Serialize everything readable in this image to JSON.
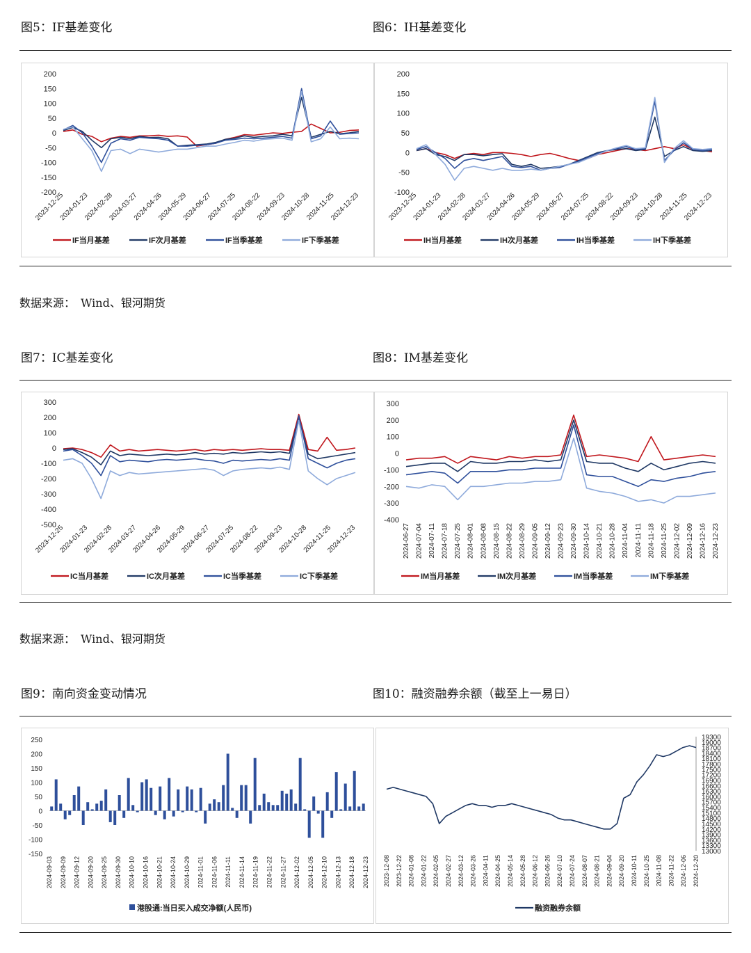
{
  "titles": {
    "fig5": "图5：IF基差变化",
    "fig6": "图6：IH基差变化",
    "fig7": "图7：IC基差变化",
    "fig8": "图8：IM基差变化",
    "fig9": "图9：南向资金变动情况",
    "fig10": "图10：融资融券余额（截至上一易日）"
  },
  "sources": {
    "s1": "数据来源：　Wind、银河期货",
    "s2": "数据来源：　Wind、银河期货"
  },
  "colors": {
    "red": "#c0161c",
    "navy": "#1f3864",
    "blue": "#2e4f9b",
    "light": "#8eaadb",
    "bar": "#2e4f9b",
    "line": "#1f3864"
  },
  "chart_data": [
    {
      "id": "fig5",
      "type": "line",
      "title": "IF基差变化",
      "ylim": [
        -200,
        200
      ],
      "yticks": [
        200,
        150,
        100,
        50,
        0,
        -50,
        -100,
        -150,
        -200
      ],
      "xticks": [
        "2023-12-25",
        "2024-01-23",
        "2024-02-28",
        "2024-03-27",
        "2024-04-26",
        "2024-05-29",
        "2024-06-27",
        "2024-07-25",
        "2024-08-22",
        "2024-09-23",
        "2024-10-28",
        "2024-11-25",
        "2024-12-23"
      ],
      "legend_position": "bottom",
      "series": [
        {
          "name": "IF当月基差",
          "color": "red",
          "values": [
            5,
            10,
            -5,
            -12,
            -30,
            -18,
            -12,
            -15,
            -10,
            -10,
            -8,
            -12,
            -10,
            -14,
            -45,
            -40,
            -35,
            -22,
            -15,
            -6,
            -8,
            -4,
            0,
            -2,
            2,
            5,
            30,
            15,
            0,
            2,
            8,
            10
          ]
        },
        {
          "name": "IF次月基差",
          "color": "navy",
          "values": [
            8,
            18,
            5,
            -25,
            -50,
            -20,
            -15,
            -20,
            -12,
            -16,
            -15,
            -20,
            -45,
            -42,
            -40,
            -38,
            -32,
            -22,
            -18,
            -10,
            -15,
            -12,
            -10,
            -5,
            -10,
            120,
            -15,
            -5,
            5,
            -3,
            0,
            5
          ]
        },
        {
          "name": "IF当季基差",
          "color": "blue",
          "values": [
            10,
            25,
            0,
            -45,
            -100,
            -35,
            -20,
            -25,
            -15,
            -18,
            -20,
            -25,
            -45,
            -45,
            -42,
            -40,
            -35,
            -25,
            -22,
            -18,
            -20,
            -18,
            -15,
            -12,
            -18,
            150,
            -20,
            -10,
            40,
            -5,
            -2,
            0
          ]
        },
        {
          "name": "IF下季基差",
          "color": "light",
          "values": [
            12,
            20,
            -20,
            -60,
            -130,
            -60,
            -55,
            -70,
            -55,
            -60,
            -65,
            -60,
            -55,
            -55,
            -50,
            -45,
            -45,
            -38,
            -32,
            -25,
            -28,
            -22,
            -20,
            -18,
            -25,
            140,
            -30,
            -20,
            20,
            -20,
            -18,
            -20
          ]
        }
      ]
    },
    {
      "id": "fig6",
      "type": "line",
      "title": "IH基差变化",
      "ylim": [
        -100,
        200
      ],
      "yticks": [
        200,
        150,
        100,
        50,
        0,
        -50,
        -100
      ],
      "xticks": [
        "2023-12-25",
        "2024-01-23",
        "2024-02-28",
        "2024-03-27",
        "2024-04-26",
        "2024-05-29",
        "2024-06-27",
        "2024-07-25",
        "2024-08-22",
        "2024-09-23",
        "2024-10-28",
        "2024-11-25",
        "2024-12-23"
      ],
      "legend_position": "bottom",
      "series": [
        {
          "name": "IH当月基差",
          "color": "red",
          "values": [
            5,
            10,
            0,
            -5,
            -15,
            -5,
            -2,
            -5,
            0,
            0,
            -2,
            -5,
            -10,
            -5,
            -2,
            -8,
            -15,
            -20,
            -15,
            -5,
            0,
            5,
            10,
            8,
            5,
            10,
            15,
            10,
            20,
            8,
            5,
            2
          ]
        },
        {
          "name": "IH次月基差",
          "color": "navy",
          "values": [
            5,
            10,
            -5,
            -10,
            -20,
            -5,
            -5,
            -8,
            -5,
            -3,
            -30,
            -35,
            -30,
            -40,
            -38,
            -35,
            -30,
            -20,
            -10,
            0,
            5,
            8,
            10,
            5,
            8,
            90,
            -10,
            5,
            15,
            5,
            3,
            5
          ]
        },
        {
          "name": "IH当季基差",
          "color": "blue",
          "values": [
            8,
            15,
            0,
            -15,
            -40,
            -20,
            -15,
            -20,
            -15,
            -10,
            -35,
            -38,
            -35,
            -45,
            -40,
            -38,
            -30,
            -22,
            -12,
            -2,
            5,
            10,
            15,
            8,
            10,
            130,
            -20,
            5,
            25,
            8,
            5,
            8
          ]
        },
        {
          "name": "IH下季基差",
          "color": "light",
          "values": [
            10,
            20,
            -5,
            -30,
            -70,
            -40,
            -35,
            -40,
            -45,
            -40,
            -45,
            -45,
            -42,
            -45,
            -40,
            -35,
            -30,
            -25,
            -15,
            -5,
            5,
            12,
            18,
            10,
            12,
            140,
            -25,
            10,
            30,
            10,
            8,
            10
          ]
        }
      ]
    },
    {
      "id": "fig7",
      "type": "line",
      "title": "IC基差变化",
      "ylim": [
        -500,
        300
      ],
      "yticks": [
        300,
        200,
        100,
        0,
        -100,
        -200,
        -300,
        -400,
        -500
      ],
      "xticks": [
        "2023-12-25",
        "2024-01-23",
        "2024-02-28",
        "2024-03-27",
        "2024-04-26",
        "2024-05-29",
        "2024-06-27",
        "2024-07-25",
        "2024-08-22",
        "2024-09-23",
        "2024-10-28",
        "2024-11-25",
        "2024-12-23"
      ],
      "legend_position": "bottom",
      "series": [
        {
          "name": "IC当月基差",
          "color": "red",
          "values": [
            -5,
            0,
            -10,
            -30,
            -60,
            20,
            -20,
            -10,
            -20,
            -15,
            -10,
            -15,
            -20,
            -15,
            -10,
            -20,
            -10,
            -15,
            -10,
            -15,
            -10,
            -5,
            -10,
            -10,
            -15,
            220,
            -10,
            -20,
            70,
            -15,
            -10,
            0
          ]
        },
        {
          "name": "IC次月基差",
          "color": "navy",
          "values": [
            -10,
            -5,
            -30,
            -60,
            -110,
            -20,
            -50,
            -40,
            -45,
            -50,
            -45,
            -40,
            -45,
            -40,
            -30,
            -40,
            -35,
            -40,
            -30,
            -35,
            -30,
            -25,
            -30,
            -25,
            -35,
            200,
            -40,
            -70,
            -60,
            -50,
            -40,
            -30
          ]
        },
        {
          "name": "IC当季基差",
          "color": "blue",
          "values": [
            -20,
            -10,
            -50,
            -100,
            -180,
            -50,
            -90,
            -80,
            -85,
            -90,
            -80,
            -75,
            -80,
            -75,
            -70,
            -80,
            -85,
            -100,
            -80,
            -85,
            -80,
            -75,
            -80,
            -70,
            -80,
            210,
            -70,
            -100,
            -130,
            -100,
            -80,
            -70
          ]
        },
        {
          "name": "IC下季基差",
          "color": "light",
          "values": [
            -80,
            -70,
            -100,
            -200,
            -330,
            -150,
            -180,
            -160,
            -170,
            -165,
            -160,
            -155,
            -150,
            -145,
            -140,
            -135,
            -145,
            -180,
            -150,
            -140,
            -135,
            -130,
            -135,
            -125,
            -140,
            180,
            -150,
            -200,
            -240,
            -200,
            -180,
            -160
          ]
        }
      ]
    },
    {
      "id": "fig8",
      "type": "line",
      "title": "IM基差变化",
      "ylim": [
        -400,
        300
      ],
      "yticks": [
        300,
        200,
        100,
        0,
        -100,
        -200,
        -300,
        -400
      ],
      "xticks": [
        "2024-06-27",
        "2024-07-04",
        "2024-07-11",
        "2024-07-18",
        "2024-07-25",
        "2024-08-01",
        "2024-08-08",
        "2024-08-15",
        "2024-08-22",
        "2024-08-29",
        "2024-09-05",
        "2024-09-12",
        "2024-09-23",
        "2024-09-30",
        "2024-10-14",
        "2024-10-21",
        "2024-10-28",
        "2024-11-04",
        "2024-11-11",
        "2024-11-18",
        "2024-11-25",
        "2024-12-02",
        "2024-12-09",
        "2024-12-16",
        "2024-12-23"
      ],
      "legend_position": "bottom",
      "series": [
        {
          "name": "IM当月基差",
          "color": "red",
          "values": [
            -40,
            -30,
            -30,
            -20,
            -60,
            -20,
            -30,
            -40,
            -20,
            -30,
            -20,
            -20,
            -10,
            230,
            -20,
            -10,
            -20,
            -30,
            -50,
            100,
            -40,
            -30,
            -20,
            -10,
            -20
          ]
        },
        {
          "name": "IM次月基差",
          "color": "navy",
          "values": [
            -80,
            -70,
            -60,
            -60,
            -110,
            -50,
            -60,
            -60,
            -50,
            -50,
            -40,
            -50,
            -40,
            200,
            -50,
            -60,
            -60,
            -90,
            -110,
            -60,
            -100,
            -80,
            -60,
            -50,
            -60
          ]
        },
        {
          "name": "IM当季基差",
          "color": "blue",
          "values": [
            -130,
            -120,
            -110,
            -120,
            -180,
            -110,
            -110,
            -110,
            -100,
            -100,
            -90,
            -90,
            -90,
            170,
            -130,
            -140,
            -140,
            -170,
            -200,
            -160,
            -170,
            -150,
            -140,
            -120,
            -110
          ]
        },
        {
          "name": "IM下季基差",
          "color": "light",
          "values": [
            -200,
            -210,
            -190,
            -200,
            -280,
            -200,
            -200,
            -190,
            -180,
            -180,
            -170,
            -170,
            -160,
            90,
            -210,
            -230,
            -240,
            -260,
            -290,
            -280,
            -300,
            -260,
            -260,
            -250,
            -240
          ]
        }
      ]
    },
    {
      "id": "fig9",
      "type": "bar",
      "title": "南向资金变动情况",
      "ylim": [
        -150,
        250
      ],
      "yticks": [
        250,
        200,
        150,
        100,
        50,
        0,
        -50,
        -100,
        -150
      ],
      "xticks": [
        "2024-09-03",
        "2024-09-09",
        "2024-09-12",
        "2024-09-20",
        "2024-09-25",
        "2024-09-30",
        "2024-10-10",
        "2024-10-16",
        "2024-10-21",
        "2024-10-24",
        "2024-10-29",
        "2024-11-01",
        "2024-11-06",
        "2024-11-11",
        "2024-11-14",
        "2024-11-19",
        "2024-11-22",
        "2024-11-27",
        "2024-12-02",
        "2024-12-05",
        "2024-12-10",
        "2024-12-13",
        "2024-12-18",
        "2024-12-23"
      ],
      "legend": "港股通:当日买入成交净额(人民币)",
      "legend_position": "bottom",
      "values": [
        15,
        110,
        25,
        -30,
        -15,
        55,
        85,
        -50,
        30,
        5,
        25,
        35,
        75,
        -40,
        -50,
        55,
        -25,
        115,
        20,
        -5,
        100,
        110,
        80,
        -15,
        85,
        -30,
        115,
        -20,
        75,
        -5,
        85,
        75,
        -5,
        80,
        -45,
        25,
        40,
        30,
        90,
        200,
        10,
        -25,
        90,
        90,
        -45,
        185,
        20,
        60,
        30,
        20,
        20,
        70,
        60,
        75,
        25,
        185,
        5,
        -95,
        50,
        -10,
        -95,
        65,
        -25,
        135,
        5,
        95,
        15,
        140,
        15,
        25
      ]
    },
    {
      "id": "fig10",
      "type": "line",
      "title": "融资融券余额（截至上一易日）",
      "ylim": [
        13000,
        19300
      ],
      "yaxis_side": "right",
      "yticks": [
        19300,
        19000,
        18700,
        18400,
        18100,
        17800,
        17500,
        17200,
        16900,
        16600,
        16300,
        16000,
        15700,
        15400,
        15100,
        14800,
        14500,
        14200,
        13900,
        13600,
        13300,
        13000
      ],
      "xticks": [
        "2023-12-08",
        "2023-12-22",
        "2024-01-08",
        "2024-01-22",
        "2024-02-05",
        "2024-02-27",
        "2024-03-12",
        "2024-03-26",
        "2024-04-11",
        "2024-04-25",
        "2024-05-14",
        "2024-05-28",
        "2024-06-12",
        "2024-06-26",
        "2024-07-10",
        "2024-07-24",
        "2024-08-07",
        "2024-08-21",
        "2024-09-04",
        "2024-09-20",
        "2024-10-11",
        "2024-10-25",
        "2024-11-08",
        "2024-11-22",
        "2024-12-06",
        "2024-12-20"
      ],
      "legend_position": "bottom",
      "series": [
        {
          "name": "融资融券余额",
          "color": "line",
          "values": [
            16400,
            16500,
            16400,
            16300,
            16200,
            16100,
            16000,
            15600,
            14500,
            14900,
            15100,
            15300,
            15500,
            15600,
            15500,
            15500,
            15400,
            15500,
            15500,
            15600,
            15500,
            15400,
            15300,
            15200,
            15100,
            15000,
            14800,
            14700,
            14700,
            14600,
            14500,
            14400,
            14300,
            14200,
            14200,
            14500,
            15900,
            16100,
            16800,
            17200,
            17700,
            18300,
            18200,
            18300,
            18500,
            18700,
            18800,
            18700
          ]
        }
      ]
    }
  ]
}
